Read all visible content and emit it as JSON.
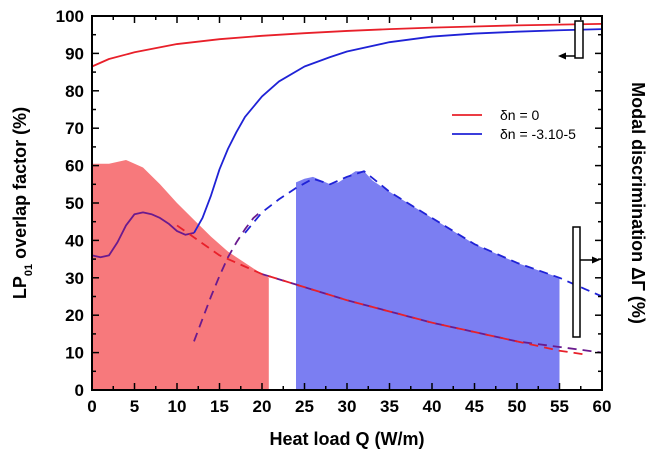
{
  "chart_data": {
    "type": "line",
    "xlabel": "Heat load Q (W/m)",
    "ylabel_left": "LP01 overlap factor (%)",
    "ylabel_left_main": "LP",
    "ylabel_left_sub": "01",
    "ylabel_left_rest": " overlap factor (%)",
    "ylabel_right": "Modal discrimination ΔΓ (%)",
    "xlim": [
      0,
      60
    ],
    "ylim": [
      0,
      100
    ],
    "x_ticks": [
      "0",
      "5",
      "10",
      "15",
      "20",
      "25",
      "30",
      "35",
      "40",
      "45",
      "50",
      "55",
      "60"
    ],
    "y_ticks": [
      "0",
      "10",
      "20",
      "30",
      "40",
      "50",
      "60",
      "70",
      "80",
      "90",
      "100"
    ],
    "colors": {
      "red": "#e8202a",
      "blue": "#1f22d6",
      "purple": "#6a1a8e",
      "red_fill": "#f7797c",
      "blue_fill": "#7b7ef2"
    },
    "legend": [
      {
        "label": "δn = 0",
        "color": "#e8202a"
      },
      {
        "label": "δn = -3.10-5",
        "color": "#1f22d6"
      }
    ],
    "series": [
      {
        "name": "δn = 0",
        "color": "#e8202a",
        "style": "solid",
        "axis": "left",
        "x": [
          0,
          2,
          5,
          10,
          15,
          20,
          25,
          30,
          35,
          40,
          45,
          50,
          55,
          60
        ],
        "y": [
          86.5,
          88.5,
          90.3,
          92.5,
          93.8,
          94.7,
          95.4,
          96.0,
          96.5,
          96.9,
          97.2,
          97.5,
          97.7,
          97.9
        ]
      },
      {
        "name": "δn = -3.10-5",
        "color": "#1f22d6",
        "style": "solid",
        "axis": "left",
        "x": [
          12,
          13,
          14,
          15,
          16,
          17,
          18,
          20,
          22,
          25,
          28,
          30,
          35,
          40,
          45,
          50,
          55,
          60
        ],
        "y": [
          42,
          46,
          52,
          59,
          64.5,
          69,
          73,
          78.5,
          82.5,
          86.5,
          89,
          90.5,
          93,
          94.5,
          95.3,
          95.8,
          96.2,
          96.5
        ]
      },
      {
        "name": "",
        "color": "#6a1a8e",
        "style": "solid",
        "axis": "left",
        "x": [
          0,
          1,
          2,
          3,
          4,
          5,
          6,
          7,
          8,
          9,
          10,
          11,
          12
        ],
        "y": [
          36,
          35.5,
          36,
          39.5,
          44,
          47,
          47.5,
          47,
          46,
          44.5,
          42.5,
          41.5,
          42
        ]
      },
      {
        "name": "",
        "color": "#6a1a8e",
        "style": "dashed",
        "axis": "left",
        "x": [
          12,
          13,
          14,
          15,
          16,
          17,
          18,
          19,
          20
        ],
        "y": [
          13,
          19,
          25,
          30.5,
          35.5,
          39.5,
          43,
          46,
          48
        ]
      },
      {
        "name": "",
        "color": "#6a1a8e",
        "style": "dashed",
        "axis": "left",
        "x": [
          20,
          25,
          30,
          35,
          40,
          45,
          50,
          55,
          60
        ],
        "y": [
          31,
          27.5,
          24,
          21,
          18,
          15.5,
          13,
          11.5,
          10
        ]
      },
      {
        "name": "",
        "color": "#e8202a",
        "style": "dashed",
        "axis": "left",
        "x": [
          10,
          15,
          20,
          25,
          30,
          35,
          40,
          45,
          50,
          55,
          58
        ],
        "y": [
          44,
          36,
          31,
          27.5,
          24,
          21,
          18,
          15.5,
          13,
          10.5,
          9.5
        ]
      },
      {
        "name": "",
        "color": "#1f22d6",
        "style": "dashed",
        "axis": "right",
        "x": [
          18,
          20,
          22,
          24,
          26,
          28,
          30,
          32,
          35,
          40,
          45,
          50,
          55,
          58,
          60
        ],
        "y": [
          42,
          47.5,
          51,
          54,
          56.5,
          55,
          57,
          58.5,
          53,
          46,
          39,
          34,
          30,
          27,
          25
        ]
      }
    ],
    "shaded_regions": [
      {
        "color": "#f7797c",
        "axis": "right",
        "x": [
          0,
          2,
          4,
          6,
          8,
          10,
          12,
          14,
          16,
          18,
          20,
          20.8
        ],
        "y": [
          60.5,
          60.5,
          61.5,
          59.5,
          55,
          50,
          45.5,
          41,
          37,
          34,
          31,
          30
        ]
      },
      {
        "color": "#7b7ef2",
        "axis": "right",
        "x": [
          24,
          25,
          26,
          27,
          28,
          29,
          30,
          31,
          32,
          33,
          35,
          40,
          45,
          50,
          55
        ],
        "y": [
          55.5,
          56.5,
          57,
          56,
          55,
          55.5,
          57,
          58.5,
          58.5,
          56,
          53,
          46,
          39,
          34,
          30
        ]
      }
    ],
    "axis_arrows": [
      "left",
      "right"
    ]
  }
}
